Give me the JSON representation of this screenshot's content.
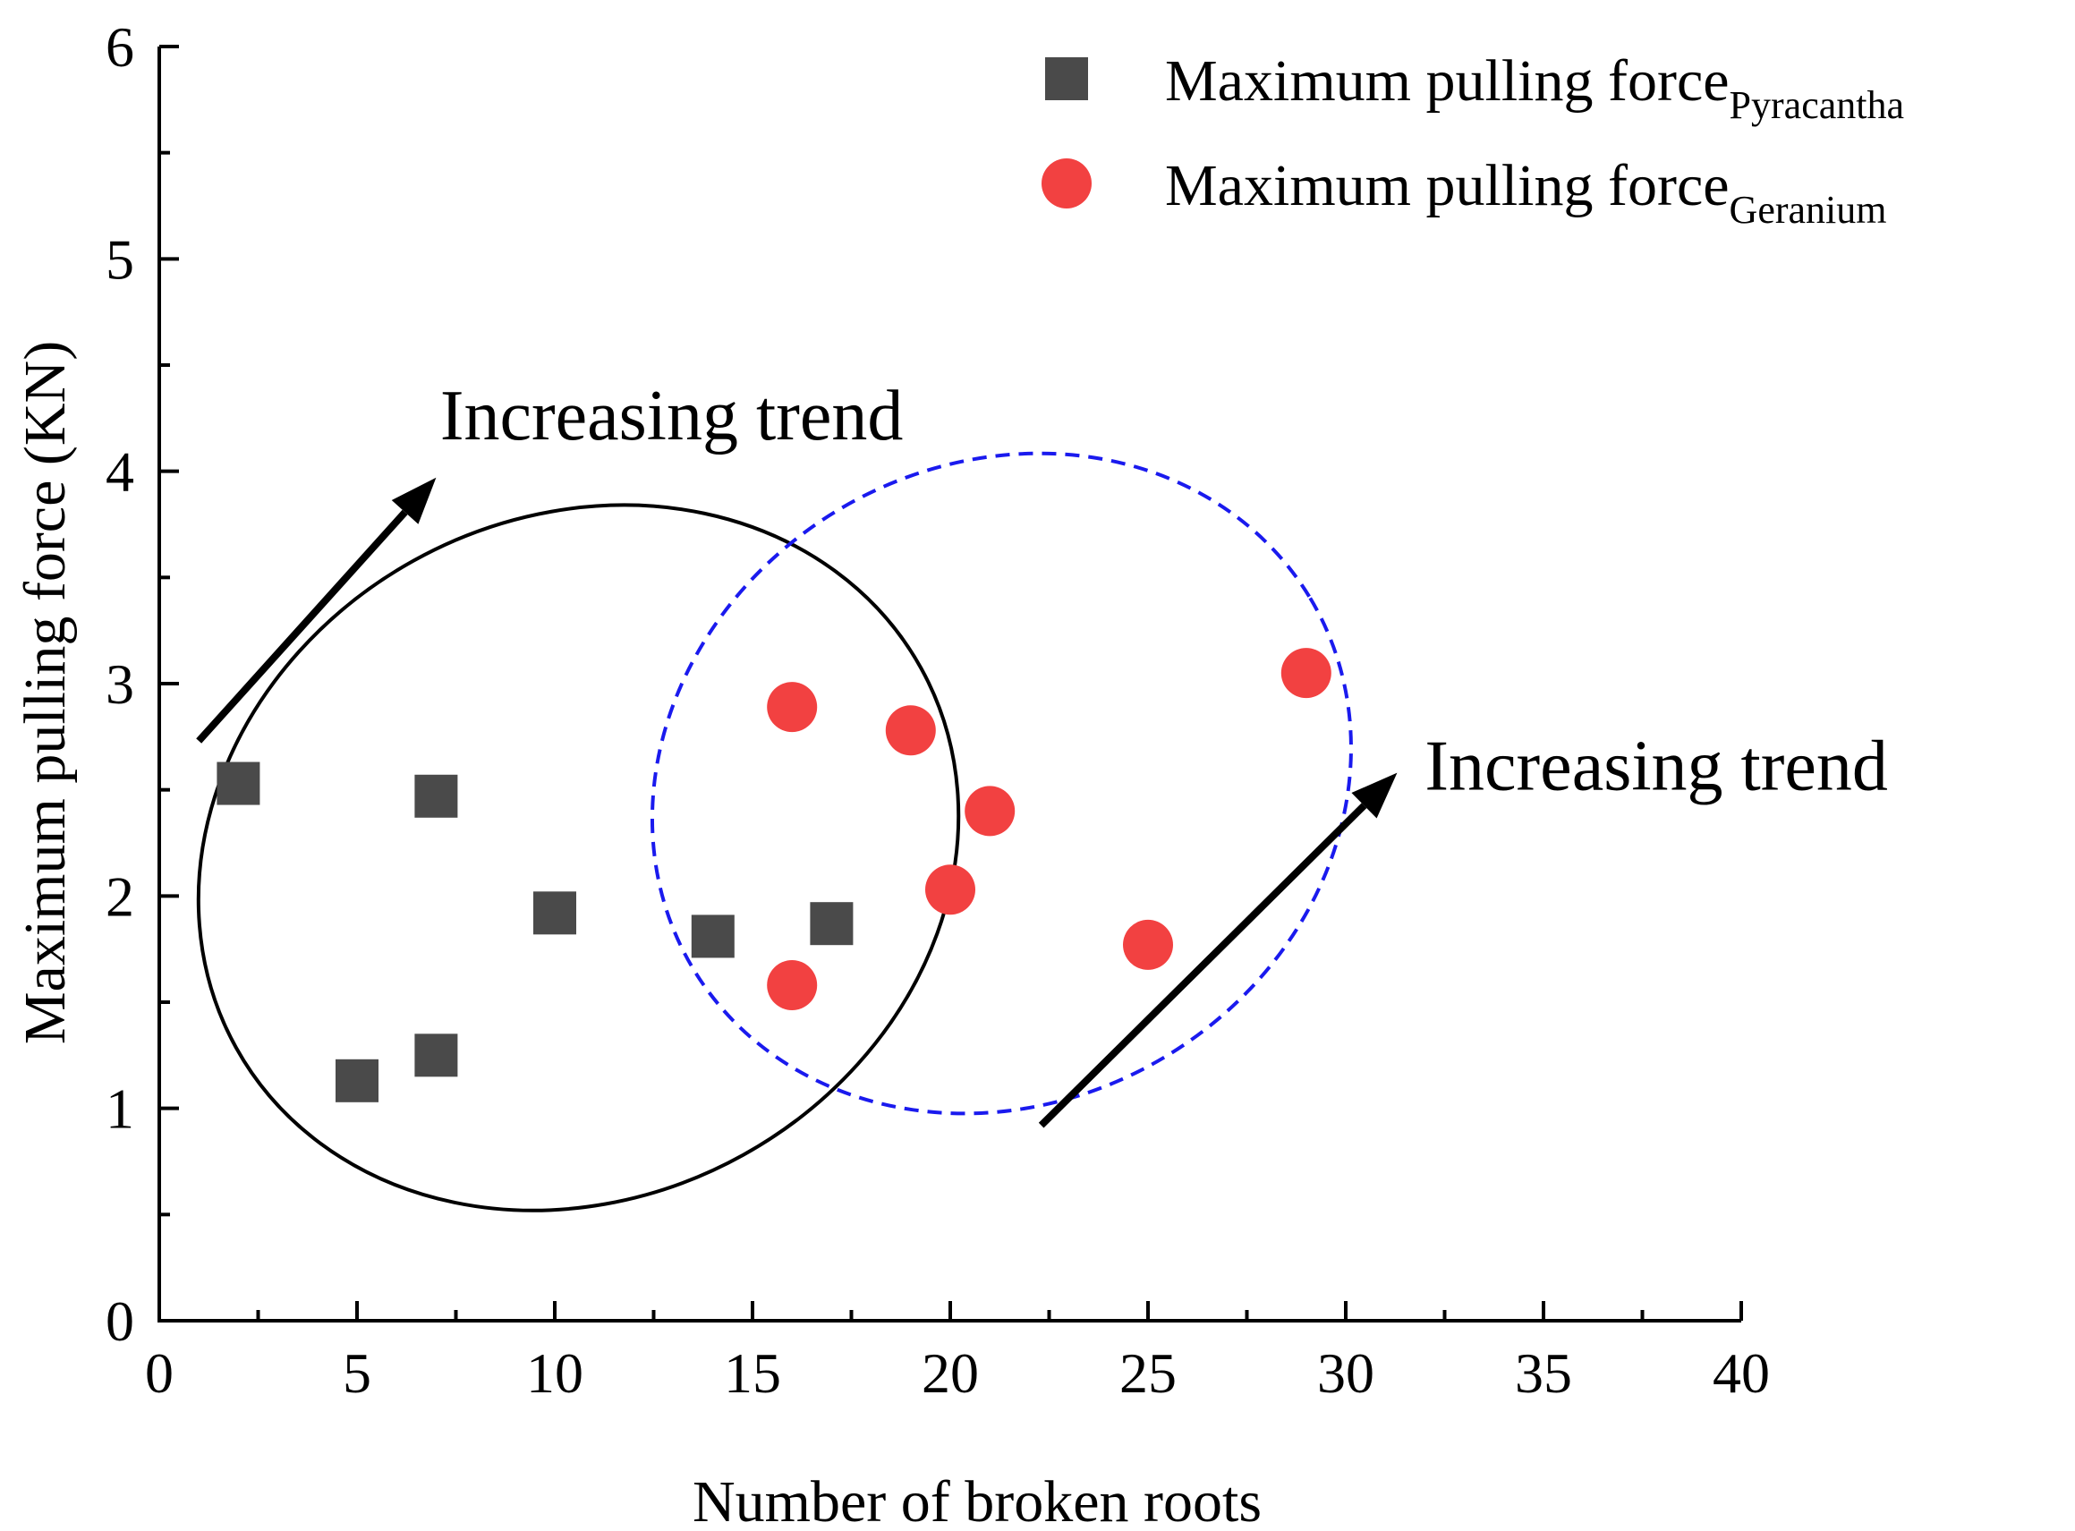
{
  "chart_data": {
    "type": "scatter",
    "xlabel": "Number of broken roots",
    "ylabel": "Maximum pulling force (KN)",
    "xlim": [
      0,
      40
    ],
    "ylim": [
      0,
      6
    ],
    "xticks": [
      0,
      5,
      10,
      15,
      20,
      25,
      30,
      35,
      40
    ],
    "yticks": [
      0,
      1,
      2,
      3,
      4,
      5,
      6
    ],
    "x_minor_step": 2.5,
    "y_minor_step": 0.5,
    "grid": false,
    "legend_position": "top-right",
    "series": [
      {
        "name": "Maximum pulling force",
        "name_subscript": "Pyracantha",
        "marker": "square",
        "color": "#4a4a4a",
        "points": [
          [
            2,
            2.53
          ],
          [
            5,
            1.13
          ],
          [
            7,
            2.47
          ],
          [
            7,
            1.25
          ],
          [
            10,
            1.92
          ],
          [
            14,
            1.81
          ],
          [
            17,
            1.87
          ]
        ]
      },
      {
        "name": "Maximum pulling force",
        "name_subscript": "Geranium",
        "marker": "circle",
        "color": "#f24141",
        "points": [
          [
            16,
            2.89
          ],
          [
            16,
            1.58
          ],
          [
            19,
            2.78
          ],
          [
            20,
            2.03
          ],
          [
            21,
            2.4
          ],
          [
            25,
            1.77
          ],
          [
            29,
            3.05
          ]
        ]
      }
    ],
    "annotations": [
      {
        "text": "Increasing trend",
        "arrow_from": [
          1,
          2.73
        ],
        "arrow_to": [
          7,
          3.97
        ],
        "text_anchor": [
          7.1,
          4.15
        ]
      },
      {
        "text": "Increasing trend",
        "arrow_from": [
          22.3,
          0.92
        ],
        "arrow_to": [
          31.3,
          2.58
        ],
        "text_anchor": [
          32,
          2.5
        ]
      }
    ],
    "groupings": [
      {
        "style": "solid",
        "color": "#000000",
        "center": [
          10.6,
          2.18
        ],
        "x_halfwidth": 9.9,
        "y_halfwidth": 1.6,
        "tilt_deg": 29
      },
      {
        "style": "dashed",
        "color": "#1a1aee",
        "center": [
          21.3,
          2.53
        ],
        "x_halfwidth": 9.1,
        "y_halfwidth": 1.5,
        "tilt_deg": 31
      }
    ]
  }
}
